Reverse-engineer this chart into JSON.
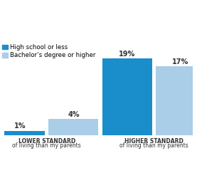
{
  "groups": [
    "LOWER STANDARD\nof living than my parents",
    "HIGHER STANDARD\nof living than my parents"
  ],
  "series": [
    {
      "label": "High school or less",
      "color": "#1a8dcb",
      "values": [
        1,
        19
      ]
    },
    {
      "label": "Bachelor’s degree or higher",
      "color": "#aacde8",
      "values": [
        4,
        17
      ]
    }
  ],
  "bar_width": 0.28,
  "group_centers": [
    0.22,
    0.82
  ],
  "ylim": [
    0,
    21.5
  ],
  "value_fontsize": 7.0,
  "legend_fontsize": 6.2,
  "xlabel_fontsize": 5.5,
  "background_color": "#ffffff",
  "baseline_color": "#aaaaaa",
  "text_color": "#333333"
}
